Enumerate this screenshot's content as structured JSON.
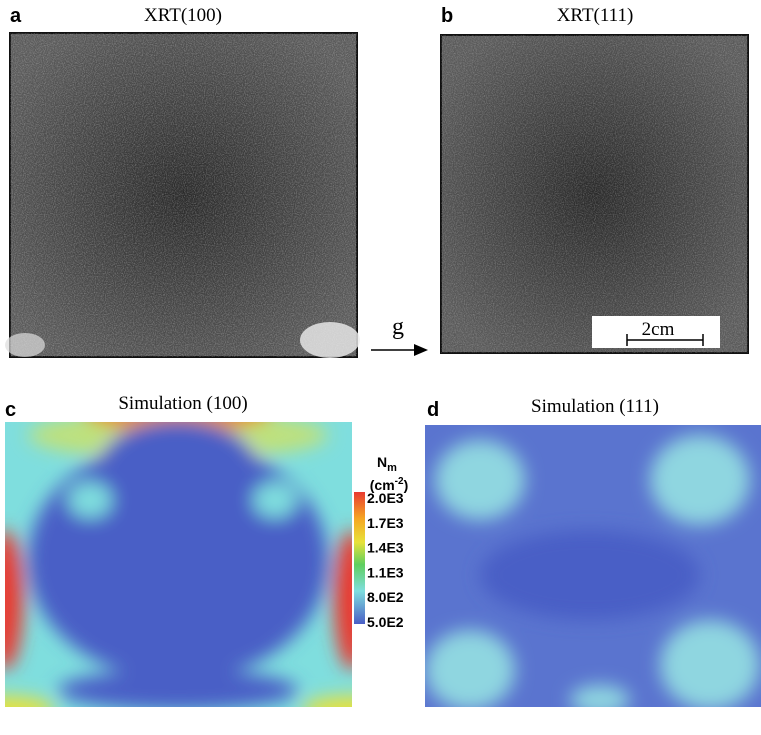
{
  "panels": [
    {
      "letter": "a",
      "title": "XRT(100)"
    },
    {
      "letter": "b",
      "title": "XRT(111)"
    },
    {
      "letter": "c",
      "title": "Simulation (100)"
    },
    {
      "letter": "d",
      "title": "Simulation (111)"
    }
  ],
  "direction_label": "g",
  "scale_bar": "2cm",
  "colorbar": {
    "symbol": "N",
    "subscript": "m",
    "unit_open": "(cm",
    "unit_superscript": "-2",
    "unit_close": ")",
    "ticks": [
      "2.0E3",
      "1.7E3",
      "1.4E3",
      "1.1E3",
      "8.0E2",
      "5.0E2"
    ]
  }
}
